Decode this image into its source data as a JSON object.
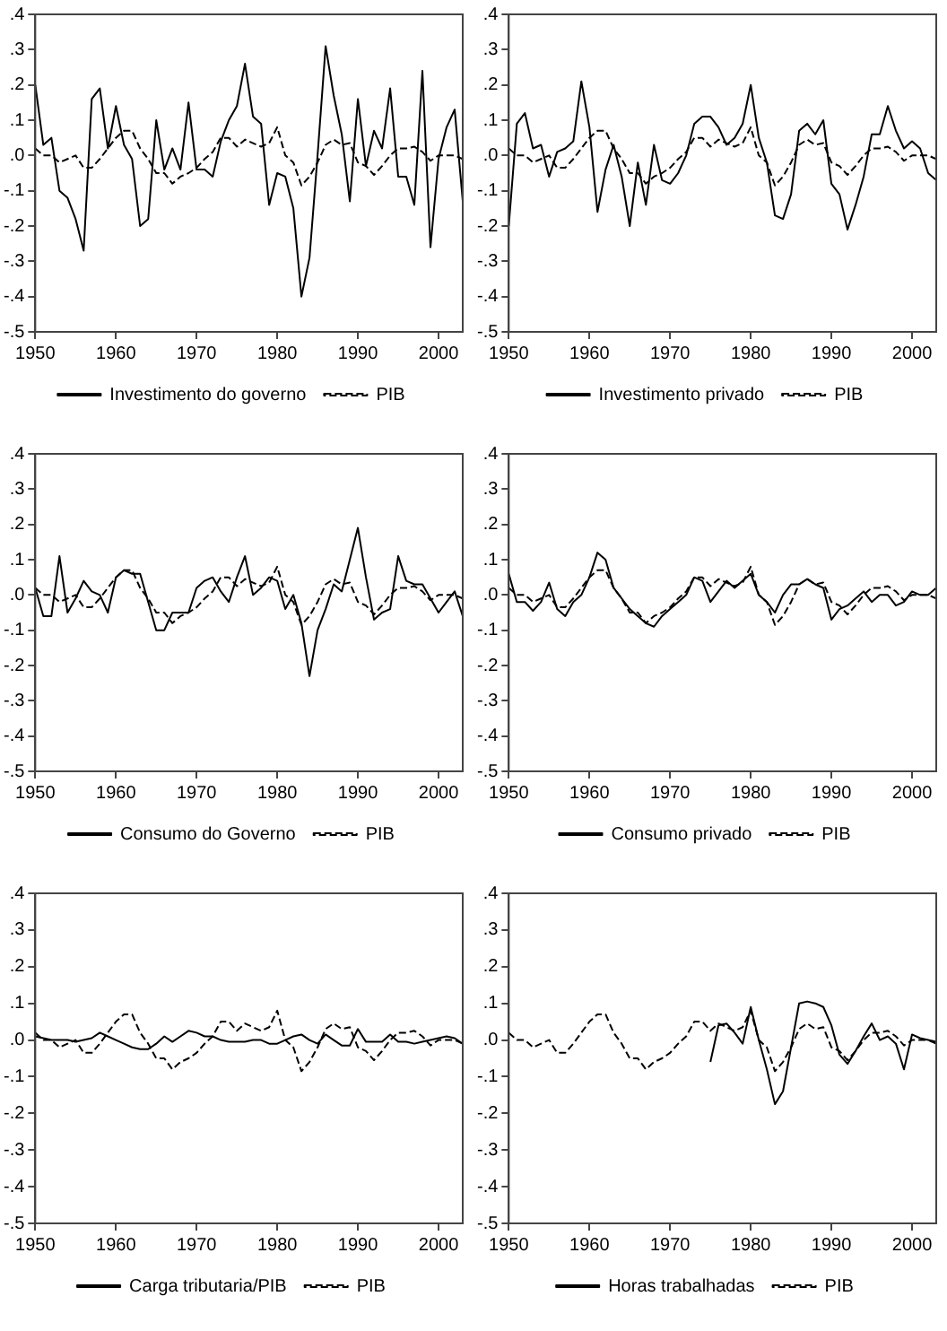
{
  "chart_data": [
    {
      "type": "line",
      "x": [
        1950,
        1951,
        1952,
        1953,
        1954,
        1955,
        1956,
        1957,
        1958,
        1959,
        1960,
        1961,
        1962,
        1963,
        1964,
        1965,
        1966,
        1967,
        1968,
        1969,
        1970,
        1971,
        1972,
        1973,
        1974,
        1975,
        1976,
        1977,
        1978,
        1979,
        1980,
        1981,
        1982,
        1983,
        1984,
        1985,
        1986,
        1987,
        1988,
        1989,
        1990,
        1991,
        1992,
        1993,
        1994,
        1995,
        1996,
        1997,
        1998,
        1999,
        2000,
        2001,
        2002,
        2003
      ],
      "xlim": [
        1950,
        2003
      ],
      "xticks": [
        1950,
        1960,
        1970,
        1980,
        1990,
        2000
      ],
      "ylim": [
        -0.5,
        0.4
      ],
      "yticks": [
        {
          "value": -0.5,
          "label": "-.5"
        },
        {
          "value": -0.4,
          "label": "-.4"
        },
        {
          "value": -0.3,
          "label": "-.3"
        },
        {
          "value": -0.2,
          "label": "-.2"
        },
        {
          "value": -0.1,
          "label": "-.1"
        },
        {
          "value": 0,
          "label": ".0"
        },
        {
          "value": 0.1,
          "label": ".1"
        },
        {
          "value": 0.2,
          "label": ".2"
        },
        {
          "value": 0.3,
          "label": ".3"
        },
        {
          "value": 0.4,
          "label": ".4"
        }
      ],
      "grid": false,
      "legend": "bottom",
      "marker": "none",
      "series": [
        {
          "name": "Investimento do governo",
          "color": "#000000",
          "line_style": "solid",
          "values": [
            0.2,
            0.03,
            0.05,
            -0.1,
            -0.12,
            -0.18,
            -0.27,
            0.16,
            0.19,
            0.02,
            0.14,
            0.03,
            -0.01,
            -0.2,
            -0.18,
            0.1,
            -0.04,
            0.02,
            -0.04,
            0.15,
            -0.04,
            -0.04,
            -0.06,
            0.04,
            0.1,
            0.14,
            0.26,
            0.11,
            0.09,
            -0.14,
            -0.05,
            -0.06,
            -0.15,
            -0.4,
            -0.29,
            0.0,
            0.31,
            0.17,
            0.06,
            -0.13,
            0.16,
            -0.03,
            0.07,
            0.02,
            0.19,
            -0.06,
            -0.06,
            -0.14,
            0.24,
            -0.26,
            -0.01,
            0.08,
            0.13,
            -0.13
          ]
        },
        {
          "name": "PIB",
          "color": "#000000",
          "line_style": "dashed",
          "values": [
            0.02,
            0.0,
            0.0,
            -0.02,
            -0.01,
            0.0,
            -0.035,
            -0.035,
            -0.01,
            0.02,
            0.05,
            0.07,
            0.07,
            0.02,
            -0.01,
            -0.05,
            -0.05,
            -0.08,
            -0.06,
            -0.05,
            -0.035,
            -0.01,
            0.01,
            0.05,
            0.05,
            0.025,
            0.045,
            0.035,
            0.025,
            0.035,
            0.08,
            0.0,
            -0.02,
            -0.085,
            -0.06,
            -0.02,
            0.03,
            0.045,
            0.03,
            0.035,
            -0.02,
            -0.03,
            -0.055,
            -0.03,
            0.0,
            0.02,
            0.02,
            0.025,
            0.01,
            -0.015,
            0.0,
            0.0,
            0.0,
            -0.01
          ]
        }
      ]
    },
    {
      "type": "line",
      "x": [
        1950,
        1951,
        1952,
        1953,
        1954,
        1955,
        1956,
        1957,
        1958,
        1959,
        1960,
        1961,
        1962,
        1963,
        1964,
        1965,
        1966,
        1967,
        1968,
        1969,
        1970,
        1971,
        1972,
        1973,
        1974,
        1975,
        1976,
        1977,
        1978,
        1979,
        1980,
        1981,
        1982,
        1983,
        1984,
        1985,
        1986,
        1987,
        1988,
        1989,
        1990,
        1991,
        1992,
        1993,
        1994,
        1995,
        1996,
        1997,
        1998,
        1999,
        2000,
        2001,
        2002,
        2003
      ],
      "xlim": [
        1950,
        2003
      ],
      "xticks": [
        1950,
        1960,
        1970,
        1980,
        1990,
        2000
      ],
      "ylim": [
        -0.5,
        0.4
      ],
      "yticks": [
        {
          "value": -0.5,
          "label": "-.5"
        },
        {
          "value": -0.4,
          "label": "-.4"
        },
        {
          "value": -0.3,
          "label": "-.3"
        },
        {
          "value": -0.2,
          "label": "-.2"
        },
        {
          "value": -0.1,
          "label": "-.1"
        },
        {
          "value": 0,
          "label": ".0"
        },
        {
          "value": 0.1,
          "label": ".1"
        },
        {
          "value": 0.2,
          "label": ".2"
        },
        {
          "value": 0.3,
          "label": ".3"
        },
        {
          "value": 0.4,
          "label": ".4"
        }
      ],
      "grid": false,
      "legend": "bottom",
      "marker": "none",
      "series": [
        {
          "name": "Investimento privado",
          "color": "#000000",
          "line_style": "solid",
          "values": [
            -0.2,
            0.09,
            0.12,
            0.02,
            0.03,
            -0.06,
            0.01,
            0.02,
            0.04,
            0.21,
            0.08,
            -0.16,
            -0.04,
            0.03,
            -0.06,
            -0.2,
            -0.02,
            -0.14,
            0.03,
            -0.07,
            -0.08,
            -0.05,
            0.0,
            0.09,
            0.11,
            0.11,
            0.08,
            0.03,
            0.05,
            0.09,
            0.2,
            0.05,
            -0.02,
            -0.17,
            -0.18,
            -0.11,
            0.07,
            0.09,
            0.06,
            0.1,
            -0.08,
            -0.11,
            -0.21,
            -0.14,
            -0.06,
            0.06,
            0.06,
            0.14,
            0.07,
            0.02,
            0.04,
            0.02,
            -0.05,
            -0.07
          ]
        },
        {
          "name": "PIB",
          "color": "#000000",
          "line_style": "dashed",
          "values": [
            0.02,
            0.0,
            0.0,
            -0.02,
            -0.01,
            0.0,
            -0.035,
            -0.035,
            -0.01,
            0.02,
            0.05,
            0.07,
            0.07,
            0.02,
            -0.01,
            -0.05,
            -0.05,
            -0.08,
            -0.06,
            -0.05,
            -0.035,
            -0.01,
            0.01,
            0.05,
            0.05,
            0.025,
            0.045,
            0.035,
            0.025,
            0.035,
            0.08,
            0.0,
            -0.02,
            -0.085,
            -0.06,
            -0.02,
            0.03,
            0.045,
            0.03,
            0.035,
            -0.02,
            -0.03,
            -0.055,
            -0.03,
            0.0,
            0.02,
            0.02,
            0.025,
            0.01,
            -0.015,
            0.0,
            0.0,
            0.0,
            -0.01
          ]
        }
      ]
    },
    {
      "type": "line",
      "x": [
        1950,
        1951,
        1952,
        1953,
        1954,
        1955,
        1956,
        1957,
        1958,
        1959,
        1960,
        1961,
        1962,
        1963,
        1964,
        1965,
        1966,
        1967,
        1968,
        1969,
        1970,
        1971,
        1972,
        1973,
        1974,
        1975,
        1976,
        1977,
        1978,
        1979,
        1980,
        1981,
        1982,
        1983,
        1984,
        1985,
        1986,
        1987,
        1988,
        1989,
        1990,
        1991,
        1992,
        1993,
        1994,
        1995,
        1996,
        1997,
        1998,
        1999,
        2000,
        2001,
        2002,
        2003
      ],
      "xlim": [
        1950,
        2003
      ],
      "xticks": [
        1950,
        1960,
        1970,
        1980,
        1990,
        2000
      ],
      "ylim": [
        -0.5,
        0.4
      ],
      "yticks": [
        {
          "value": -0.5,
          "label": "-.5"
        },
        {
          "value": -0.4,
          "label": "-.4"
        },
        {
          "value": -0.3,
          "label": "-.3"
        },
        {
          "value": -0.2,
          "label": "-.2"
        },
        {
          "value": -0.1,
          "label": "-.1"
        },
        {
          "value": 0,
          "label": ".0"
        },
        {
          "value": 0.1,
          "label": ".1"
        },
        {
          "value": 0.2,
          "label": ".2"
        },
        {
          "value": 0.3,
          "label": ".3"
        },
        {
          "value": 0.4,
          "label": ".4"
        }
      ],
      "grid": false,
      "legend": "bottom",
      "marker": "none",
      "series": [
        {
          "name": "Consumo do Governo",
          "color": "#000000",
          "line_style": "solid",
          "values": [
            0.02,
            -0.06,
            -0.06,
            0.11,
            -0.05,
            -0.01,
            0.04,
            0.01,
            0.0,
            -0.05,
            0.05,
            0.07,
            0.06,
            0.06,
            -0.02,
            -0.1,
            -0.1,
            -0.05,
            -0.05,
            -0.05,
            0.02,
            0.04,
            0.05,
            0.01,
            -0.02,
            0.05,
            0.11,
            0.0,
            0.02,
            0.05,
            0.04,
            -0.04,
            0.0,
            -0.08,
            -0.23,
            -0.1,
            -0.04,
            0.03,
            0.01,
            0.1,
            0.19,
            0.05,
            -0.07,
            -0.05,
            -0.04,
            0.11,
            0.04,
            0.03,
            0.03,
            -0.01,
            -0.05,
            -0.02,
            0.01,
            -0.06
          ]
        },
        {
          "name": "PIB",
          "color": "#000000",
          "line_style": "dashed",
          "values": [
            0.02,
            0.0,
            0.0,
            -0.02,
            -0.01,
            0.0,
            -0.035,
            -0.035,
            -0.01,
            0.02,
            0.05,
            0.07,
            0.07,
            0.02,
            -0.01,
            -0.05,
            -0.05,
            -0.08,
            -0.06,
            -0.05,
            -0.035,
            -0.01,
            0.01,
            0.05,
            0.05,
            0.025,
            0.045,
            0.035,
            0.025,
            0.035,
            0.08,
            0.0,
            -0.02,
            -0.085,
            -0.06,
            -0.02,
            0.03,
            0.045,
            0.03,
            0.035,
            -0.02,
            -0.03,
            -0.055,
            -0.03,
            0.0,
            0.02,
            0.02,
            0.025,
            0.01,
            -0.015,
            0.0,
            0.0,
            0.0,
            -0.01
          ]
        }
      ]
    },
    {
      "type": "line",
      "x": [
        1950,
        1951,
        1952,
        1953,
        1954,
        1955,
        1956,
        1957,
        1958,
        1959,
        1960,
        1961,
        1962,
        1963,
        1964,
        1965,
        1966,
        1967,
        1968,
        1969,
        1970,
        1971,
        1972,
        1973,
        1974,
        1975,
        1976,
        1977,
        1978,
        1979,
        1980,
        1981,
        1982,
        1983,
        1984,
        1985,
        1986,
        1987,
        1988,
        1989,
        1990,
        1991,
        1992,
        1993,
        1994,
        1995,
        1996,
        1997,
        1998,
        1999,
        2000,
        2001,
        2002,
        2003
      ],
      "xlim": [
        1950,
        2003
      ],
      "xticks": [
        1950,
        1960,
        1970,
        1980,
        1990,
        2000
      ],
      "ylim": [
        -0.5,
        0.4
      ],
      "yticks": [
        {
          "value": -0.5,
          "label": "-.5"
        },
        {
          "value": -0.4,
          "label": "-.4"
        },
        {
          "value": -0.3,
          "label": "-.3"
        },
        {
          "value": -0.2,
          "label": "-.2"
        },
        {
          "value": -0.1,
          "label": "-.1"
        },
        {
          "value": 0,
          "label": ".0"
        },
        {
          "value": 0.1,
          "label": ".1"
        },
        {
          "value": 0.2,
          "label": ".2"
        },
        {
          "value": 0.3,
          "label": ".3"
        },
        {
          "value": 0.4,
          "label": ".4"
        }
      ],
      "grid": false,
      "legend": "bottom",
      "marker": "none",
      "series": [
        {
          "name": "Consumo privado",
          "color": "#000000",
          "line_style": "solid",
          "values": [
            0.06,
            -0.02,
            -0.02,
            -0.045,
            -0.02,
            0.035,
            -0.04,
            -0.06,
            -0.02,
            0.0,
            0.05,
            0.12,
            0.1,
            0.02,
            -0.01,
            -0.04,
            -0.06,
            -0.08,
            -0.09,
            -0.06,
            -0.04,
            -0.02,
            0.0,
            0.05,
            0.04,
            -0.02,
            0.01,
            0.04,
            0.02,
            0.04,
            0.06,
            0.0,
            -0.02,
            -0.05,
            0.0,
            0.03,
            0.03,
            0.045,
            0.03,
            0.02,
            -0.07,
            -0.04,
            -0.03,
            -0.01,
            0.01,
            -0.02,
            0.0,
            0.0,
            -0.03,
            -0.02,
            0.01,
            0.0,
            0.0,
            0.02
          ]
        },
        {
          "name": "PIB",
          "color": "#000000",
          "line_style": "dashed",
          "values": [
            0.02,
            0.0,
            0.0,
            -0.02,
            -0.01,
            0.0,
            -0.035,
            -0.035,
            -0.01,
            0.02,
            0.05,
            0.07,
            0.07,
            0.02,
            -0.01,
            -0.05,
            -0.05,
            -0.08,
            -0.06,
            -0.05,
            -0.035,
            -0.01,
            0.01,
            0.05,
            0.05,
            0.025,
            0.045,
            0.035,
            0.025,
            0.035,
            0.08,
            0.0,
            -0.02,
            -0.085,
            -0.06,
            -0.02,
            0.03,
            0.045,
            0.03,
            0.035,
            -0.02,
            -0.03,
            -0.055,
            -0.03,
            0.0,
            0.02,
            0.02,
            0.025,
            0.01,
            -0.015,
            0.0,
            0.0,
            0.0,
            -0.01
          ]
        }
      ]
    },
    {
      "type": "line",
      "x": [
        1950,
        1951,
        1952,
        1953,
        1954,
        1955,
        1956,
        1957,
        1958,
        1959,
        1960,
        1961,
        1962,
        1963,
        1964,
        1965,
        1966,
        1967,
        1968,
        1969,
        1970,
        1971,
        1972,
        1973,
        1974,
        1975,
        1976,
        1977,
        1978,
        1979,
        1980,
        1981,
        1982,
        1983,
        1984,
        1985,
        1986,
        1987,
        1988,
        1989,
        1990,
        1991,
        1992,
        1993,
        1994,
        1995,
        1996,
        1997,
        1998,
        1999,
        2000,
        2001,
        2002,
        2003
      ],
      "xlim": [
        1950,
        2003
      ],
      "xticks": [
        1950,
        1960,
        1970,
        1980,
        1990,
        2000
      ],
      "ylim": [
        -0.5,
        0.4
      ],
      "yticks": [
        {
          "value": -0.5,
          "label": "-.5"
        },
        {
          "value": -0.4,
          "label": "-.4"
        },
        {
          "value": -0.3,
          "label": "-.3"
        },
        {
          "value": -0.2,
          "label": "-.2"
        },
        {
          "value": -0.1,
          "label": "-.1"
        },
        {
          "value": 0,
          "label": ".0"
        },
        {
          "value": 0.1,
          "label": ".1"
        },
        {
          "value": 0.2,
          "label": ".2"
        },
        {
          "value": 0.3,
          "label": ".3"
        },
        {
          "value": 0.4,
          "label": ".4"
        }
      ],
      "grid": false,
      "legend": "bottom",
      "marker": "none",
      "series": [
        {
          "name": "Carga tributaria/PIB",
          "color": "#000000",
          "line_style": "solid",
          "values": [
            0.01,
            0.005,
            0.0,
            0.0,
            0.0,
            -0.005,
            0.0,
            0.005,
            0.02,
            0.01,
            0.0,
            -0.01,
            -0.02,
            -0.025,
            -0.025,
            -0.01,
            0.01,
            -0.005,
            0.01,
            0.025,
            0.02,
            0.01,
            0.01,
            0.0,
            -0.005,
            -0.005,
            -0.005,
            0.0,
            0.0,
            -0.01,
            -0.01,
            0.0,
            0.01,
            0.015,
            0.0,
            -0.01,
            0.015,
            0.0,
            -0.015,
            -0.015,
            0.03,
            -0.005,
            -0.005,
            -0.005,
            0.015,
            -0.005,
            -0.005,
            -0.01,
            -0.005,
            0.0,
            0.005,
            0.01,
            0.005,
            -0.01
          ]
        },
        {
          "name": "PIB",
          "color": "#000000",
          "line_style": "dashed",
          "values": [
            0.02,
            0.0,
            0.0,
            -0.02,
            -0.01,
            0.0,
            -0.035,
            -0.035,
            -0.01,
            0.02,
            0.05,
            0.07,
            0.07,
            0.02,
            -0.01,
            -0.05,
            -0.05,
            -0.08,
            -0.06,
            -0.05,
            -0.035,
            -0.01,
            0.01,
            0.05,
            0.05,
            0.025,
            0.045,
            0.035,
            0.025,
            0.035,
            0.08,
            0.0,
            -0.02,
            -0.085,
            -0.06,
            -0.02,
            0.03,
            0.045,
            0.03,
            0.035,
            -0.02,
            -0.03,
            -0.055,
            -0.03,
            0.0,
            0.02,
            0.02,
            0.025,
            0.01,
            -0.015,
            0.0,
            0.0,
            0.0,
            -0.01
          ]
        }
      ]
    },
    {
      "type": "line",
      "x": [
        1950,
        1951,
        1952,
        1953,
        1954,
        1955,
        1956,
        1957,
        1958,
        1959,
        1960,
        1961,
        1962,
        1963,
        1964,
        1965,
        1966,
        1967,
        1968,
        1969,
        1970,
        1971,
        1972,
        1973,
        1974,
        1975,
        1976,
        1977,
        1978,
        1979,
        1980,
        1981,
        1982,
        1983,
        1984,
        1985,
        1986,
        1987,
        1988,
        1989,
        1990,
        1991,
        1992,
        1993,
        1994,
        1995,
        1996,
        1997,
        1998,
        1999,
        2000,
        2001,
        2002,
        2003
      ],
      "xlim": [
        1950,
        2003
      ],
      "xticks": [
        1950,
        1960,
        1970,
        1980,
        1990,
        2000
      ],
      "ylim": [
        -0.5,
        0.4
      ],
      "yticks": [
        {
          "value": -0.5,
          "label": "-.5"
        },
        {
          "value": -0.4,
          "label": "-.4"
        },
        {
          "value": -0.3,
          "label": "-.3"
        },
        {
          "value": -0.2,
          "label": "-.2"
        },
        {
          "value": -0.1,
          "label": "-.1"
        },
        {
          "value": 0,
          "label": ".0"
        },
        {
          "value": 0.1,
          "label": ".1"
        },
        {
          "value": 0.2,
          "label": ".2"
        },
        {
          "value": 0.3,
          "label": ".3"
        },
        {
          "value": 0.4,
          "label": ".4"
        }
      ],
      "grid": false,
      "legend": "bottom",
      "marker": "none",
      "series": [
        {
          "name": "Horas trabalhadas",
          "color": "#000000",
          "line_style": "solid",
          "values": [
            null,
            null,
            null,
            null,
            null,
            null,
            null,
            null,
            null,
            null,
            null,
            null,
            null,
            null,
            null,
            null,
            null,
            null,
            null,
            null,
            null,
            null,
            null,
            null,
            null,
            -0.06,
            0.04,
            0.045,
            0.02,
            -0.01,
            0.09,
            0.0,
            -0.08,
            -0.175,
            -0.14,
            -0.02,
            0.1,
            0.105,
            0.1,
            0.09,
            0.04,
            -0.04,
            -0.065,
            -0.03,
            0.01,
            0.045,
            0.0,
            0.01,
            -0.01,
            -0.08,
            0.015,
            0.005,
            0.0,
            -0.005
          ]
        },
        {
          "name": "PIB",
          "color": "#000000",
          "line_style": "dashed",
          "values": [
            0.02,
            0.0,
            0.0,
            -0.02,
            -0.01,
            0.0,
            -0.035,
            -0.035,
            -0.01,
            0.02,
            0.05,
            0.07,
            0.07,
            0.02,
            -0.01,
            -0.05,
            -0.05,
            -0.08,
            -0.06,
            -0.05,
            -0.035,
            -0.01,
            0.01,
            0.05,
            0.05,
            0.025,
            0.045,
            0.035,
            0.025,
            0.035,
            0.08,
            0.0,
            -0.02,
            -0.085,
            -0.06,
            -0.02,
            0.03,
            0.045,
            0.03,
            0.035,
            -0.02,
            -0.03,
            -0.055,
            -0.03,
            0.0,
            0.02,
            0.02,
            0.025,
            0.01,
            -0.015,
            0.0,
            0.0,
            0.0,
            -0.01
          ]
        }
      ]
    }
  ]
}
